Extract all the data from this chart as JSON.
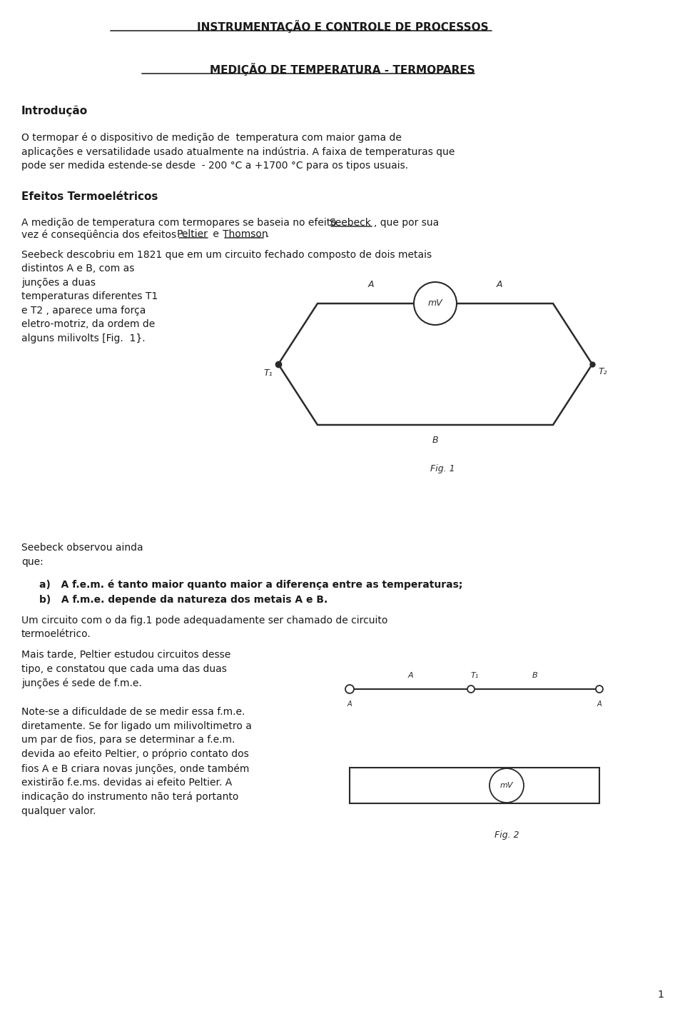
{
  "title1": "INSTRUMENTAÇÃO E CONTROLE DE PROCESSOS",
  "title2": "MEDIÇÃO DE TEMPERATURA - TERMOPARES",
  "section1_title": "Introdução",
  "section1_body": "O termopar é o dispositivo de medição de  temperatura com maior gama de\naplicações e versatilidade usado atualmente na indústria. A faixa de temperaturas que\npode ser medida estende-se desde  - 200 °C a +1700 °C para os tipos usuais.",
  "section2_title": "Efeitos Termoelétricos",
  "section2_body2": "Seebeck descobriu em 1821 que em um circuito fechado composto de dois metais\ndistintos A e B, com as\njunções a duas\ntemperaturas diferentes T1\ne T2 , aparece uma força\neletro-motriz, da ordem de\nalguns milivolts [Fig.  1}.",
  "seebeck_obs": "Seebeck observou ainda\nque:",
  "item_a": "a)   A f.e.m. é tanto maior quanto maior a diferença entre as temperaturas;",
  "item_b": "b)   A f.m.e. depende da natureza dos metais A e B.",
  "section3_body1": "Um circuito com o da fig.1 pode adequadamente ser chamado de circuito\ntermoelétrico.",
  "section3_body2": "Mais tarde, Peltier estudou circuitos desse\ntipo, e constatou que cada uma das duas\njunções é sede de f.m.e.",
  "section3_body3": "Note-se a dificuldade de se medir essa f.m.e.\ndiretamente. Se for ligado um milivoltimetro a\num par de fios, para se determinar a f.e.m.\ndevida ao efeito Peltier, o próprio contato dos\nfios A e B criara novas junções, onde também\nexistirão f.e.ms. devidas ai efeito Peltier. A\nindicação do instrumento não terá portanto\nqualquer valor.",
  "page_number": "1",
  "bg_color": "#ffffff",
  "text_color": "#1a1a1a",
  "font_size_title": 11,
  "font_size_body": 10,
  "font_size_section": 11
}
